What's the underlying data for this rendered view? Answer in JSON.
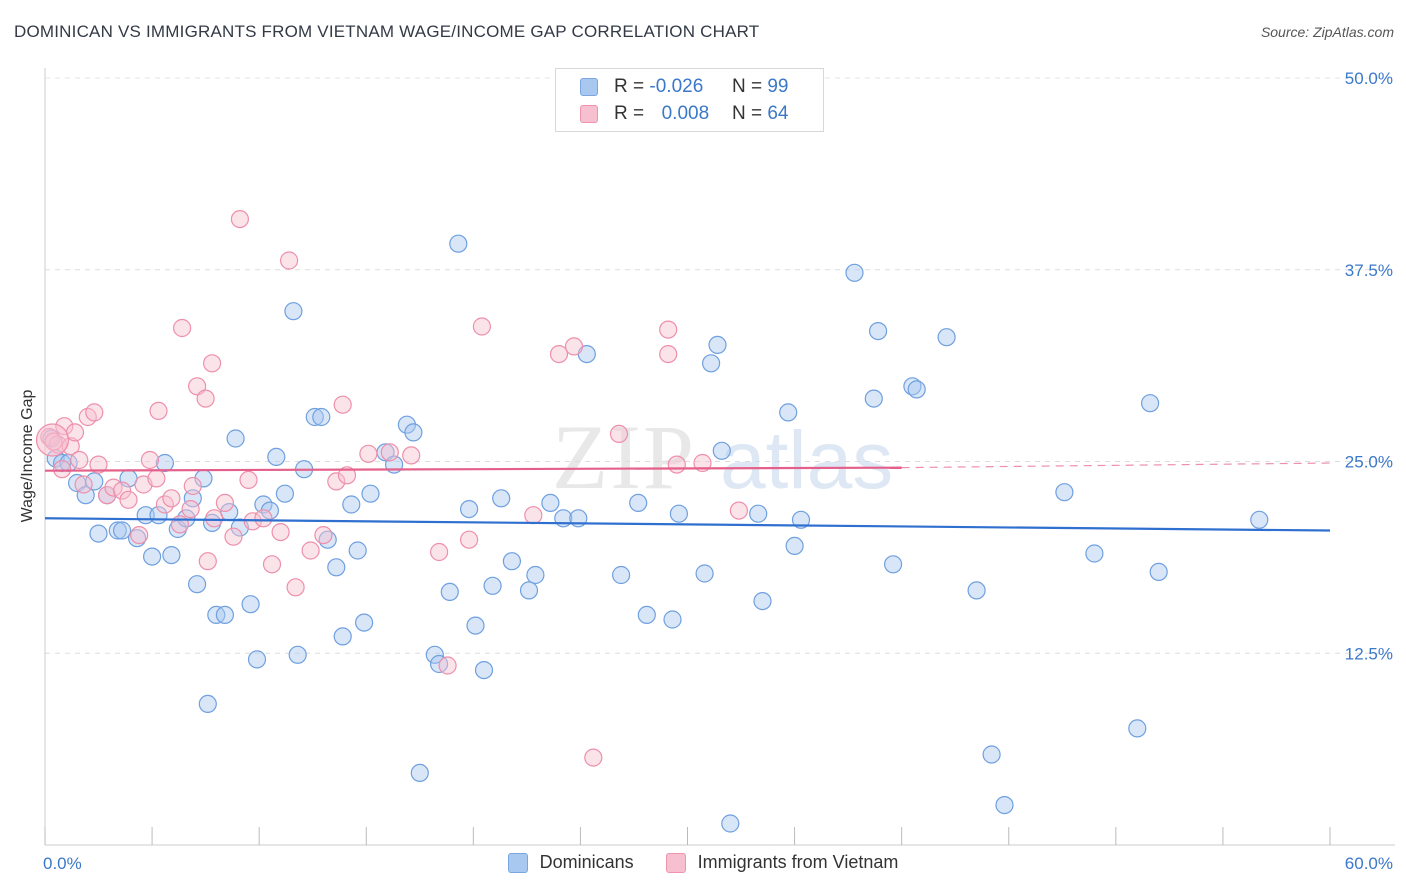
{
  "title": "DOMINICAN VS IMMIGRANTS FROM VIETNAM WAGE/INCOME GAP CORRELATION CHART",
  "source": "Source: ZipAtlas.com",
  "watermark": {
    "zip": "ZIP",
    "atlas": "atlas"
  },
  "legend": {
    "rows": [
      {
        "r_label": "R =",
        "r_value": "-0.026",
        "n_label": "N =",
        "n_value": "99",
        "color": "#a9c8f0",
        "border": "#7aa6e0"
      },
      {
        "r_label": "R =",
        "r_value": "0.008",
        "n_label": "N =",
        "n_value": "64",
        "color": "#f7c0d0",
        "border": "#ef93ae"
      }
    ]
  },
  "bottom_legend": {
    "items": [
      "Dominicans",
      "Immigrants from Vietnam"
    ]
  },
  "chart_data": {
    "type": "scatter",
    "xlabel": "",
    "ylabel": "Wage/Income Gap",
    "xlim": [
      0,
      60
    ],
    "ylim": [
      0,
      50
    ],
    "x_tick_labels": [
      "0.0%",
      "60.0%"
    ],
    "y_ticks": [
      12.5,
      25.0,
      37.5,
      50.0
    ],
    "y_tick_labels": [
      "12.5%",
      "25.0%",
      "37.5%",
      "50.0%"
    ],
    "grid": true,
    "series": [
      {
        "name": "Dominicans",
        "color": "#6fa0df",
        "fill": "#a9c8f0",
        "trend": {
          "x0": 0,
          "y0": 21.3,
          "x1": 60,
          "y1": 20.5,
          "color": "#2f6fcf"
        },
        "points": [
          [
            0.3,
            26.5
          ],
          [
            0.5,
            25.2
          ],
          [
            0.8,
            24.9
          ],
          [
            1.1,
            24.9
          ],
          [
            1.5,
            23.6
          ],
          [
            1.9,
            22.8
          ],
          [
            2.3,
            23.7
          ],
          [
            2.5,
            20.3
          ],
          [
            2.9,
            22.8
          ],
          [
            3.4,
            20.5
          ],
          [
            3.6,
            20.5
          ],
          [
            3.9,
            23.9
          ],
          [
            4.3,
            20.0
          ],
          [
            4.7,
            21.5
          ],
          [
            5.0,
            18.8
          ],
          [
            5.3,
            21.5
          ],
          [
            5.6,
            24.9
          ],
          [
            5.9,
            18.9
          ],
          [
            6.2,
            20.6
          ],
          [
            6.6,
            21.3
          ],
          [
            6.9,
            22.6
          ],
          [
            7.1,
            17.0
          ],
          [
            7.6,
            9.2
          ],
          [
            7.8,
            21.0
          ],
          [
            7.4,
            23.9
          ],
          [
            8.0,
            15.0
          ],
          [
            8.4,
            15.0
          ],
          [
            8.6,
            21.7
          ],
          [
            8.9,
            26.5
          ],
          [
            9.1,
            20.7
          ],
          [
            9.6,
            15.7
          ],
          [
            9.9,
            12.1
          ],
          [
            10.2,
            22.2
          ],
          [
            10.5,
            21.8
          ],
          [
            10.8,
            25.3
          ],
          [
            11.2,
            22.9
          ],
          [
            11.6,
            34.8
          ],
          [
            11.8,
            12.4
          ],
          [
            12.1,
            24.5
          ],
          [
            12.6,
            27.9
          ],
          [
            12.9,
            27.9
          ],
          [
            13.2,
            19.9
          ],
          [
            13.6,
            18.1
          ],
          [
            13.9,
            13.6
          ],
          [
            14.3,
            22.2
          ],
          [
            14.6,
            19.2
          ],
          [
            14.9,
            14.5
          ],
          [
            15.2,
            22.9
          ],
          [
            15.9,
            25.6
          ],
          [
            16.3,
            24.8
          ],
          [
            16.9,
            27.4
          ],
          [
            17.2,
            26.9
          ],
          [
            17.5,
            4.7
          ],
          [
            18.2,
            12.4
          ],
          [
            18.4,
            11.8
          ],
          [
            18.9,
            16.5
          ],
          [
            19.3,
            39.2
          ],
          [
            19.8,
            21.9
          ],
          [
            20.1,
            14.3
          ],
          [
            20.5,
            11.4
          ],
          [
            20.9,
            16.9
          ],
          [
            21.3,
            22.6
          ],
          [
            21.8,
            18.5
          ],
          [
            22.6,
            16.6
          ],
          [
            22.9,
            17.6
          ],
          [
            23.6,
            22.3
          ],
          [
            24.2,
            21.3
          ],
          [
            24.9,
            21.3
          ],
          [
            25.3,
            32.0
          ],
          [
            26.9,
            17.6
          ],
          [
            27.7,
            22.3
          ],
          [
            28.1,
            15.0
          ],
          [
            29.3,
            14.7
          ],
          [
            29.6,
            21.6
          ],
          [
            30.8,
            17.7
          ],
          [
            31.1,
            31.4
          ],
          [
            31.4,
            32.6
          ],
          [
            31.6,
            25.7
          ],
          [
            32.0,
            1.4
          ],
          [
            33.3,
            21.6
          ],
          [
            33.5,
            15.9
          ],
          [
            34.7,
            28.2
          ],
          [
            35.0,
            19.5
          ],
          [
            35.3,
            21.2
          ],
          [
            37.8,
            37.3
          ],
          [
            38.7,
            29.1
          ],
          [
            38.9,
            33.5
          ],
          [
            39.6,
            18.3
          ],
          [
            40.5,
            29.9
          ],
          [
            40.7,
            29.7
          ],
          [
            42.1,
            33.1
          ],
          [
            43.5,
            16.6
          ],
          [
            44.2,
            5.9
          ],
          [
            44.8,
            2.6
          ],
          [
            47.6,
            23.0
          ],
          [
            49.0,
            19.0
          ],
          [
            51.0,
            7.6
          ],
          [
            51.6,
            28.8
          ],
          [
            52.0,
            17.8
          ],
          [
            56.7,
            21.2
          ]
        ]
      },
      {
        "name": "Immigrants from Vietnam",
        "color": "#ee8fab",
        "fill": "#f7c0d0",
        "trend": {
          "x0": 0,
          "y0": 24.4,
          "x1": 40.0,
          "y1": 24.6,
          "color": "#e4608a",
          "dash_to": 60,
          "dash_y": 24.9
        },
        "points": [
          [
            0.2,
            26.6
          ],
          [
            0.6,
            26.1
          ],
          [
            0.9,
            27.3
          ],
          [
            1.2,
            26.0
          ],
          [
            1.6,
            25.1
          ],
          [
            2.0,
            27.9
          ],
          [
            2.3,
            28.2
          ],
          [
            2.5,
            24.8
          ],
          [
            2.9,
            22.8
          ],
          [
            3.2,
            23.3
          ],
          [
            3.6,
            23.1
          ],
          [
            3.9,
            22.5
          ],
          [
            4.4,
            20.2
          ],
          [
            4.6,
            23.5
          ],
          [
            4.9,
            25.1
          ],
          [
            5.2,
            23.9
          ],
          [
            5.3,
            28.3
          ],
          [
            5.6,
            22.2
          ],
          [
            5.9,
            22.6
          ],
          [
            6.3,
            20.9
          ],
          [
            6.4,
            33.7
          ],
          [
            6.8,
            21.9
          ],
          [
            6.9,
            23.4
          ],
          [
            7.1,
            29.9
          ],
          [
            7.5,
            29.1
          ],
          [
            7.6,
            18.5
          ],
          [
            7.9,
            21.3
          ],
          [
            7.8,
            31.4
          ],
          [
            8.4,
            22.3
          ],
          [
            8.8,
            20.1
          ],
          [
            9.1,
            40.8
          ],
          [
            9.5,
            23.8
          ],
          [
            9.7,
            21.1
          ],
          [
            10.2,
            21.3
          ],
          [
            10.6,
            18.3
          ],
          [
            11.0,
            20.4
          ],
          [
            11.4,
            38.1
          ],
          [
            11.7,
            16.8
          ],
          [
            12.4,
            19.2
          ],
          [
            13.0,
            20.2
          ],
          [
            13.6,
            23.7
          ],
          [
            13.9,
            28.7
          ],
          [
            14.1,
            24.1
          ],
          [
            15.1,
            25.5
          ],
          [
            16.1,
            25.6
          ],
          [
            17.1,
            25.4
          ],
          [
            18.4,
            19.1
          ],
          [
            18.8,
            11.7
          ],
          [
            19.8,
            19.9
          ],
          [
            20.4,
            33.8
          ],
          [
            22.8,
            21.5
          ],
          [
            24.0,
            32.0
          ],
          [
            24.7,
            32.5
          ],
          [
            25.6,
            5.7
          ],
          [
            26.8,
            26.8
          ],
          [
            29.1,
            33.6
          ],
          [
            29.1,
            32.0
          ],
          [
            29.5,
            24.8
          ],
          [
            30.7,
            24.9
          ],
          [
            32.4,
            21.8
          ],
          [
            0.4,
            26.3
          ],
          [
            1.4,
            26.9
          ],
          [
            0.8,
            24.5
          ],
          [
            1.8,
            23.5
          ]
        ]
      }
    ]
  }
}
